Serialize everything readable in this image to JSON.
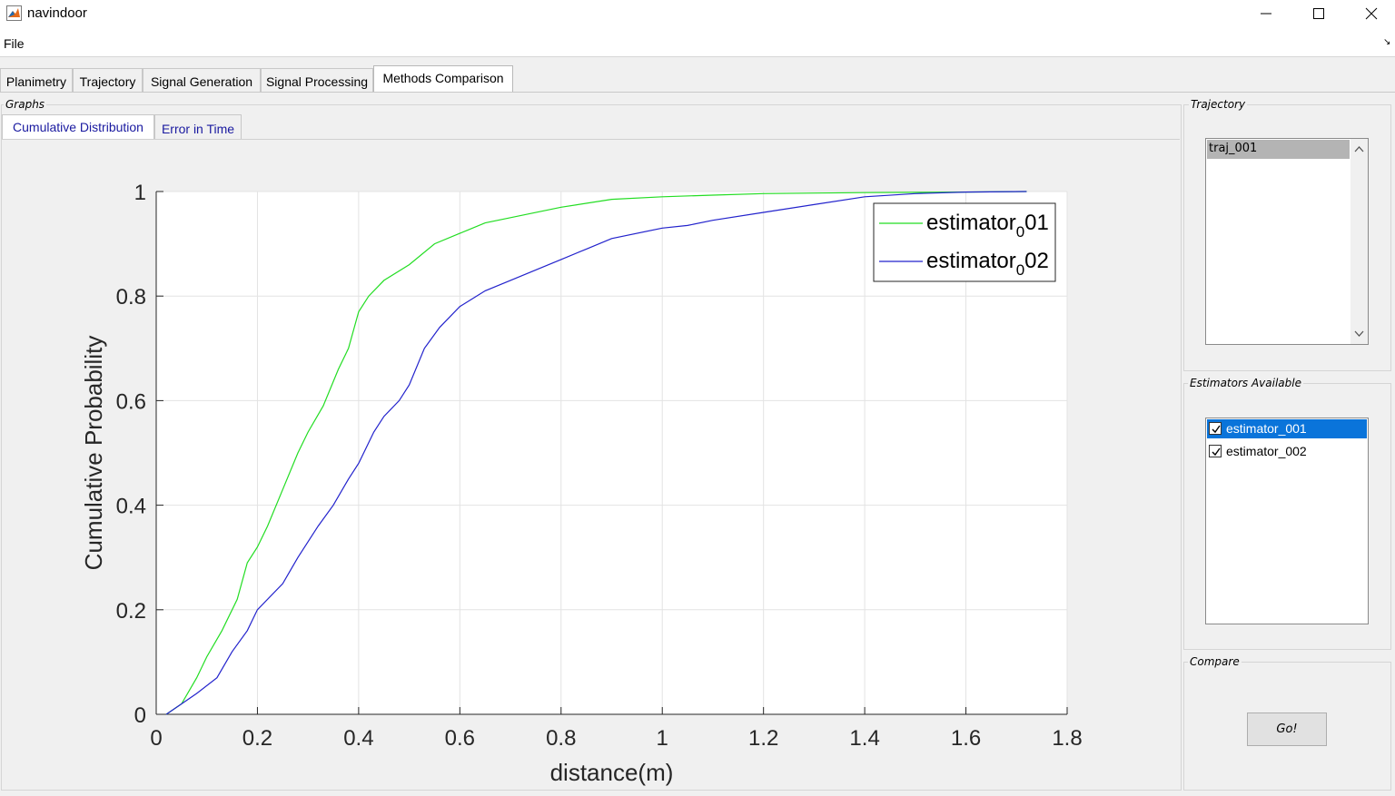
{
  "window": {
    "title": "navindoor",
    "controls": [
      "minimize",
      "maximize",
      "close"
    ]
  },
  "menu": {
    "file_label": "File",
    "overflow_glyph": "↘"
  },
  "main_tabs": [
    {
      "label": "Planimetry",
      "active": false
    },
    {
      "label": "Trajectory",
      "active": false
    },
    {
      "label": "Signal Generation",
      "active": false
    },
    {
      "label": "Signal Processing",
      "active": false
    },
    {
      "label": "Methods Comparison",
      "active": true
    }
  ],
  "graphs": {
    "group_label": "Graphs",
    "tabs": [
      {
        "label": "Cumulative Distribution",
        "active": true
      },
      {
        "label": "Error in Time",
        "active": false
      }
    ]
  },
  "trajectory": {
    "group_label": "Trajectory",
    "items": [
      "traj_001"
    ]
  },
  "estimators": {
    "group_label": "Estimators Available",
    "items": [
      {
        "label": "estimator_001",
        "checked": true,
        "selected": true
      },
      {
        "label": "estimator_002",
        "checked": true,
        "selected": false
      }
    ]
  },
  "compare": {
    "group_label": "Compare",
    "button_label": "Go!"
  },
  "chart_data": {
    "type": "line",
    "title": "",
    "xlabel": "distance(m)",
    "ylabel": "Cumulative Probability",
    "xlim": [
      0,
      1.8
    ],
    "ylim": [
      0,
      1
    ],
    "xticks": [
      "0",
      "0.2",
      "0.4",
      "0.6",
      "0.8",
      "1",
      "1.2",
      "1.4",
      "1.6",
      "1.8"
    ],
    "yticks": [
      "0",
      "0.2",
      "0.4",
      "0.6",
      "0.8",
      "1"
    ],
    "grid": true,
    "legend_position": "top-right",
    "series": [
      {
        "name_base": "estimator",
        "name_sub": "0",
        "name_suffix": "01",
        "color": "#22dd22",
        "x": [
          0.02,
          0.05,
          0.08,
          0.1,
          0.13,
          0.16,
          0.18,
          0.2,
          0.22,
          0.25,
          0.28,
          0.3,
          0.33,
          0.36,
          0.38,
          0.4,
          0.42,
          0.45,
          0.5,
          0.55,
          0.6,
          0.65,
          0.7,
          0.8,
          0.9,
          1.0,
          1.1,
          1.2,
          1.4,
          1.6,
          1.72
        ],
        "y": [
          0.0,
          0.02,
          0.07,
          0.11,
          0.16,
          0.22,
          0.29,
          0.32,
          0.36,
          0.43,
          0.5,
          0.54,
          0.59,
          0.66,
          0.7,
          0.77,
          0.8,
          0.83,
          0.86,
          0.9,
          0.92,
          0.94,
          0.95,
          0.97,
          0.985,
          0.99,
          0.993,
          0.996,
          0.998,
          0.999,
          1.0
        ]
      },
      {
        "name_base": "estimator",
        "name_sub": "0",
        "name_suffix": "02",
        "color": "#2222cc",
        "x": [
          0.02,
          0.05,
          0.08,
          0.12,
          0.15,
          0.18,
          0.2,
          0.25,
          0.28,
          0.32,
          0.35,
          0.38,
          0.4,
          0.43,
          0.45,
          0.48,
          0.5,
          0.53,
          0.56,
          0.6,
          0.65,
          0.7,
          0.75,
          0.8,
          0.85,
          0.9,
          1.0,
          1.05,
          1.1,
          1.2,
          1.3,
          1.4,
          1.5,
          1.6,
          1.72
        ],
        "y": [
          0.0,
          0.02,
          0.04,
          0.07,
          0.12,
          0.16,
          0.2,
          0.25,
          0.3,
          0.36,
          0.4,
          0.45,
          0.48,
          0.54,
          0.57,
          0.6,
          0.63,
          0.7,
          0.74,
          0.78,
          0.81,
          0.83,
          0.85,
          0.87,
          0.89,
          0.91,
          0.93,
          0.935,
          0.945,
          0.96,
          0.975,
          0.99,
          0.996,
          0.999,
          1.0
        ]
      }
    ]
  }
}
